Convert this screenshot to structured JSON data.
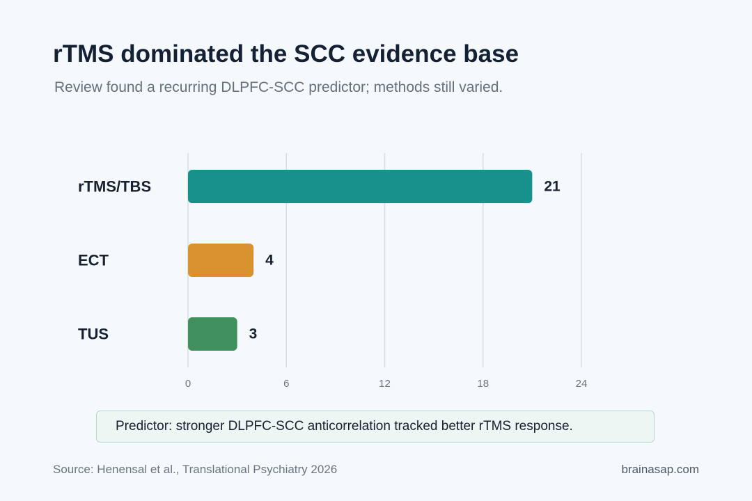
{
  "header": {
    "title": "rTMS dominated the SCC evidence base",
    "subtitle": "Review found a recurring DLPFC-SCC predictor; methods still varied."
  },
  "chart_data": {
    "type": "bar",
    "orientation": "horizontal",
    "categories": [
      "rTMS/TBS",
      "ECT",
      "TUS"
    ],
    "values": [
      21,
      4,
      3
    ],
    "colors": [
      "#17918a",
      "#d9922f",
      "#3f8f5f"
    ],
    "xlim": [
      0,
      24
    ],
    "xticks": [
      0,
      6,
      12,
      18,
      24
    ],
    "grid": true,
    "legend": "none"
  },
  "callout": {
    "text": "Predictor: stronger DLPFC-SCC anticorrelation tracked better rTMS response."
  },
  "footer": {
    "source": "Source: Henensal et al., Translational Psychiatry 2026",
    "brand": "brainasap.com"
  }
}
